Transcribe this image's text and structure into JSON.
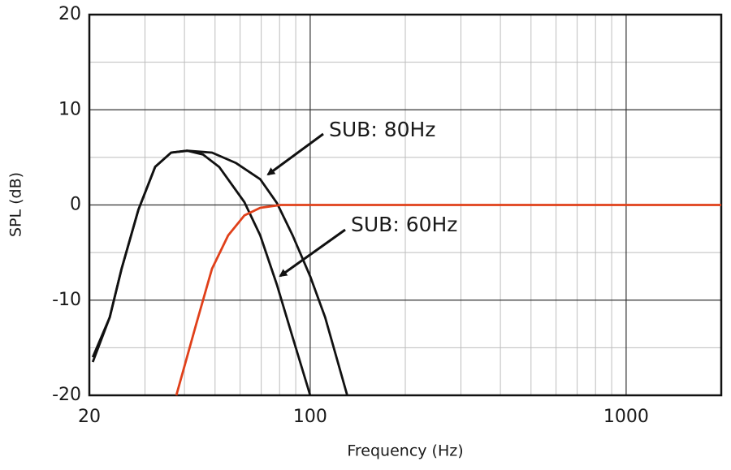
{
  "chart_data": {
    "type": "line",
    "x_label": "Frequency (Hz)",
    "y_label": "SPL (dB)",
    "log_x": true,
    "grid": true,
    "xlim": [
      20,
      2000
    ],
    "ylim": [
      -20,
      20
    ],
    "xticks": [
      20,
      100,
      1000
    ],
    "yticks": [
      -20,
      -10,
      0,
      10,
      20
    ],
    "x_minor_ticks": [
      30,
      40,
      50,
      60,
      70,
      80,
      90,
      200,
      300,
      400,
      500,
      600,
      700,
      800,
      900,
      2000
    ],
    "y_minor_ticks": [
      -15,
      -5,
      5,
      15
    ],
    "series": [
      {
        "name": "SUB: 80Hz",
        "color": "#111111",
        "x": [
          20.5,
          23.2,
          25.3,
          28.6,
          32.3,
          36.3,
          40.8,
          48.9,
          58.3,
          69.5,
          78.5,
          88,
          100,
          111.5,
          131
        ],
        "values": [
          -16,
          -11.8,
          -6.7,
          -0.5,
          4,
          5.5,
          5.7,
          5.5,
          4.4,
          2.7,
          0.2,
          -3.2,
          -7.5,
          -11.8,
          -20
        ]
      },
      {
        "name": "SUB: 60Hz",
        "color": "#111111",
        "x": [
          20.5,
          23.2,
          25.3,
          28.6,
          32.3,
          36.3,
          40.8,
          45.8,
          51.5,
          61.9,
          69.5,
          78.5,
          88,
          100
        ],
        "values": [
          -16.5,
          -11.8,
          -6.7,
          -0.5,
          4,
          5.5,
          5.7,
          5.3,
          4,
          0.3,
          -3.2,
          -8.4,
          -13.9,
          -20
        ]
      },
      {
        "color": "#e0401a",
        "x": [
          37.7,
          43.5,
          48.9,
          55,
          61.9,
          69.5,
          80.6,
          2000
        ],
        "values": [
          -20,
          -12.6,
          -6.7,
          -3.2,
          -1.1,
          -0.3,
          0,
          0
        ]
      }
    ]
  }
}
